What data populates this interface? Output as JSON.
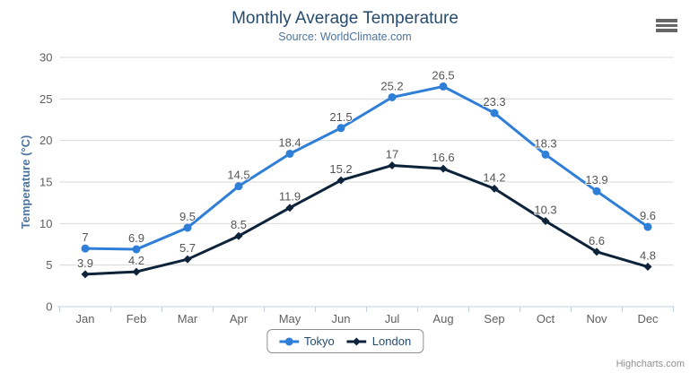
{
  "header": {
    "title": "Monthly Average Temperature",
    "subtitle": "Source: WorldClimate.com"
  },
  "menu": {
    "icon": "hamburger-menu-icon",
    "color": "#666666"
  },
  "credits": {
    "label": "Highcharts.com"
  },
  "chart_data": {
    "type": "line",
    "title": "Monthly Average Temperature",
    "subtitle": "Source: WorldClimate.com",
    "categories": [
      "Jan",
      "Feb",
      "Mar",
      "Apr",
      "May",
      "Jun",
      "Jul",
      "Aug",
      "Sep",
      "Oct",
      "Nov",
      "Dec"
    ],
    "series": [
      {
        "name": "Tokyo",
        "color": "#2f7ed8",
        "marker": "circle",
        "values": [
          7,
          6.9,
          9.5,
          14.5,
          18.4,
          21.5,
          25.2,
          26.5,
          23.3,
          18.3,
          13.9,
          9.6
        ]
      },
      {
        "name": "London",
        "color": "#0d233a",
        "marker": "diamond",
        "values": [
          3.9,
          4.2,
          5.7,
          8.5,
          11.9,
          15.2,
          17,
          16.6,
          14.2,
          10.3,
          6.6,
          4.8
        ]
      }
    ],
    "xlabel": "",
    "ylabel": "Temperature (°C)",
    "ylim": [
      0,
      30
    ],
    "ytick_step": 5,
    "grid": true,
    "data_labels": true,
    "legend_position": "bottom-center",
    "colors": {
      "grid_line": "#d8d8d8",
      "axis_line": "#c0d0e0",
      "tick_label": "#606060",
      "axis_title": "#4d759e",
      "title": "#274b6d",
      "subtitle": "#4d759e",
      "data_label": "#555555",
      "legend_border": "#909090",
      "legend_text": "#274b6d"
    }
  }
}
